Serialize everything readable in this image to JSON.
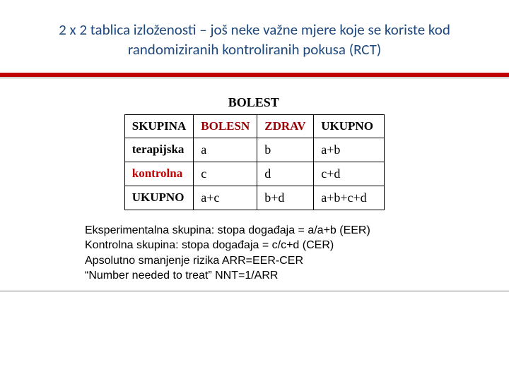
{
  "title": {
    "text": "2 x 2 tablica izloženosti – još neke važne mjere koje se koriste kod randomiziranih kontroliranih pokusa (RCT)",
    "color": "#1f497d",
    "fontsize": 21
  },
  "redbar": {
    "color": "#c00000"
  },
  "table": {
    "top_header": "BOLEST",
    "row_header": "SKUPINA",
    "col_b": "BOLESN",
    "col_z": "ZDRAV",
    "col_t": "UKUPNO",
    "rows": [
      {
        "label": "terapijska",
        "b": "a",
        "z": "b",
        "t": "a+b",
        "label_color": "#c00000"
      },
      {
        "label": "kontrolna",
        "b": "c",
        "z": "d",
        "t": "c+d",
        "label_color": "#000000"
      }
    ],
    "total_row": {
      "label": "UKUPNO",
      "b": "a+c",
      "z": "b+d",
      "t": "a+b+c+d"
    },
    "colors": {
      "maroon": "#990000",
      "black": "#000000"
    }
  },
  "footer": {
    "fontsize": 16,
    "color": "#000000",
    "lines": [
      "Eksperimentalna skupina: stopa događaja = a/a+b (EER)",
      "Kontrolna skupina: stopa događaja = c/c+d (CER)",
      "Apsolutno smanjenje rizika ARR=EER-CER",
      "“Number needed to treat”   NNT=1/ARR"
    ]
  }
}
